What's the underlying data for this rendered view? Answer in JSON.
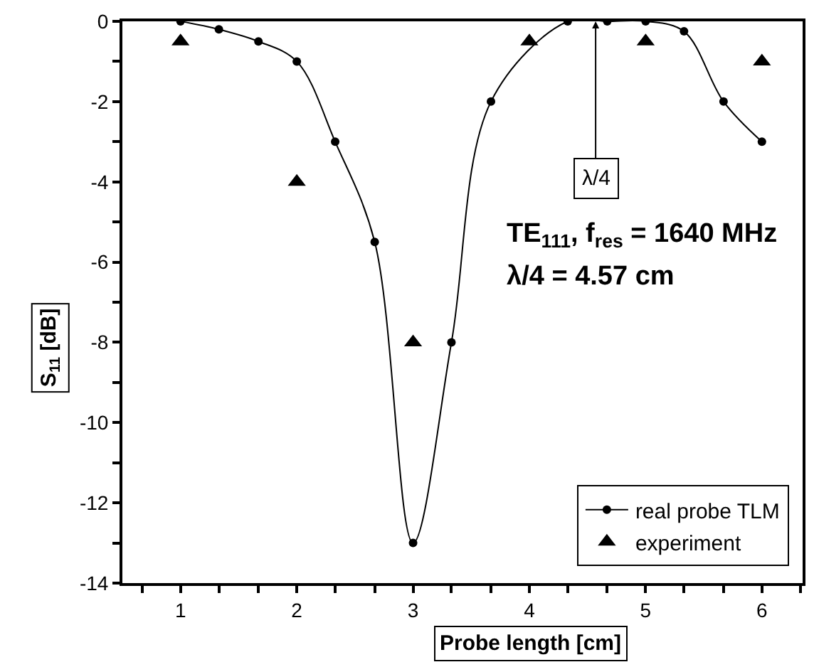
{
  "chart_data": {
    "type": "line",
    "xlabel": "Probe length [cm]",
    "ylabel": "S$_{11}$ [dB]",
    "xlim": [
      0.5,
      6.35
    ],
    "ylim": [
      -14,
      0
    ],
    "xticks": [
      {
        "value": 0.67,
        "label": null
      },
      1,
      {
        "value": 1.33,
        "label": null
      },
      {
        "value": 1.67,
        "label": null
      },
      2,
      {
        "value": 2.33,
        "label": null
      },
      {
        "value": 2.67,
        "label": null
      },
      3,
      {
        "value": 3.33,
        "label": null
      },
      {
        "value": 3.67,
        "label": null
      },
      4,
      {
        "value": 4.33,
        "label": null
      },
      {
        "value": 4.67,
        "label": null
      },
      5,
      {
        "value": 5.33,
        "label": null
      },
      {
        "value": 5.67,
        "label": null
      },
      6,
      {
        "value": 6.33,
        "label": null
      }
    ],
    "yticks": [
      -14,
      {
        "value": -13,
        "label": null
      },
      -12,
      {
        "value": -11,
        "label": null
      },
      -10,
      {
        "value": -9,
        "label": null
      },
      -8,
      {
        "value": -7,
        "label": null
      },
      -6,
      {
        "value": -5,
        "label": null
      },
      -4,
      {
        "value": -3,
        "label": null
      },
      -2,
      {
        "value": -1,
        "label": null
      },
      0
    ],
    "series": [
      {
        "name": "real probe TLM",
        "marker": "circle",
        "color": "#000000",
        "x": [
          1,
          1.33,
          1.67,
          2,
          2.33,
          2.67,
          3,
          3.33,
          3.67,
          4.33,
          4.67,
          5,
          5.33,
          5.67,
          6
        ],
        "values": [
          0,
          -0.2,
          -0.5,
          -1,
          -3,
          -5.5,
          -13,
          -8,
          -2,
          0,
          0,
          0,
          -0.25,
          -2,
          -3
        ]
      },
      {
        "name": "experiment",
        "type": "scatter",
        "marker": "triangle",
        "color": "#000000",
        "x": [
          1,
          2,
          3,
          4,
          5,
          6
        ],
        "values": [
          -0.5,
          -4,
          -8,
          -0.5,
          -0.5,
          -1
        ]
      }
    ],
    "annotations": [
      {
        "text": "λ/4",
        "x": 4.57,
        "y": 0
      },
      "TE$_{111}$, f$_{res}$ = 1640 MHz",
      "λ/4 = 4.57 cm"
    ],
    "legend": "bottom right"
  }
}
